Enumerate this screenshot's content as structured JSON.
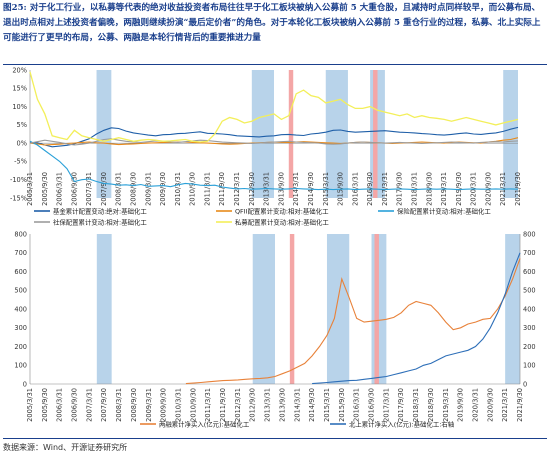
{
  "caption": {
    "figure_label": "图25:",
    "text": "对于化工行业，以私募等代表的绝对收益投资者布局往往早于化工板块被纳入公募前 5 大重仓股，且减持时点同样较早，而公募布局、退出时点相对上述投资者偏晚，两融则继续扮演“最后定价者”的角色。对于本轮化工板块被纳入公募前 5 重仓行业的过程，私募、北上实际上可能进行了更早的布局，公募、两融是本轮行情背后的重要推进力量"
  },
  "source": "数据来源：Wind、开源证券研究所",
  "colors": {
    "blue_band": "#b8d3ea",
    "red_band": "#f4a6a6",
    "fund": "#1f5fa8",
    "qfii": "#e88a1a",
    "insurance": "#2aa0d8",
    "social": "#9c9c9c",
    "private": "#f3ef5a",
    "margin": "#e8823a",
    "north": "#2e6fb8"
  },
  "chart_data": [
    {
      "type": "line",
      "quarters": [
        "2005/3/31",
        "2005/6/30",
        "2005/9/30",
        "2005/12/31",
        "2006/3/31",
        "2006/6/30",
        "2006/9/30",
        "2006/12/31",
        "2007/3/31",
        "2007/6/30",
        "2007/9/30",
        "2007/12/31",
        "2008/3/31",
        "2008/6/30",
        "2008/9/30",
        "2008/12/31",
        "2009/3/31",
        "2009/6/30",
        "2009/9/30",
        "2009/12/31",
        "2010/3/31",
        "2010/6/30",
        "2010/9/30",
        "2010/12/31",
        "2011/3/31",
        "2011/6/30",
        "2011/9/30",
        "2011/12/31",
        "2012/3/31",
        "2012/6/30",
        "2012/9/30",
        "2012/12/31",
        "2013/3/31",
        "2013/6/30",
        "2013/9/30",
        "2013/12/31",
        "2014/3/31",
        "2014/6/30",
        "2014/9/30",
        "2014/12/31",
        "2015/3/31",
        "2015/6/30",
        "2015/9/30",
        "2015/12/31",
        "2016/3/31",
        "2016/6/30",
        "2016/9/30",
        "2016/12/31",
        "2017/3/31",
        "2017/6/30",
        "2017/9/30",
        "2017/12/31",
        "2018/3/31",
        "2018/6/30",
        "2018/9/30",
        "2018/12/31",
        "2019/3/31",
        "2019/6/30",
        "2019/9/30",
        "2019/12/31",
        "2020/3/31",
        "2020/6/30",
        "2020/9/30",
        "2020/12/31",
        "2021/3/31",
        "2021/6/30",
        "2021/9/30"
      ],
      "tick_labels": [
        "2005/3/31",
        "2005/9/30",
        "2006/3/31",
        "2006/9/30",
        "2007/3/31",
        "2007/9/30",
        "2008/3/31",
        "2008/9/30",
        "2009/3/31",
        "2009/9/30",
        "2010/3/31",
        "2010/9/30",
        "2011/3/31",
        "2011/9/30",
        "2012/3/31",
        "2012/9/30",
        "2013/3/31",
        "2013/9/30",
        "2014/3/31",
        "2014/9/30",
        "2015/3/31",
        "2015/9/30",
        "2016/3/31",
        "2016/9/30",
        "2017/3/31",
        "2017/9/30",
        "2018/3/31",
        "2018/9/30",
        "2019/3/31",
        "2019/9/30",
        "2020/3/31",
        "2020/9/30",
        "2021/3/31",
        "2021/9/30"
      ],
      "y_ticks": [
        "-15%",
        "-10%",
        "-5%",
        "0%",
        "5%",
        "10%",
        "15%",
        "20%"
      ],
      "ylim": [
        -15,
        20
      ],
      "blue_bands": [
        [
          9,
          11
        ],
        [
          30,
          33
        ],
        [
          40,
          43
        ],
        [
          46,
          48
        ],
        [
          64,
          66
        ]
      ],
      "red_bands": [
        [
          35,
          35.6
        ],
        [
          46.4,
          47
        ]
      ],
      "series": [
        {
          "name": "基金累计配置变动:绝对:基础化工",
          "key": "fund",
          "values": [
            0.2,
            0.1,
            -0.5,
            -1.0,
            -0.8,
            -0.6,
            -0.2,
            0.5,
            1.2,
            2.5,
            3.5,
            4.2,
            4.0,
            3.3,
            2.8,
            2.5,
            2.2,
            2.0,
            2.3,
            2.4,
            2.6,
            2.7,
            2.9,
            3.1,
            2.7,
            2.6,
            2.5,
            2.3,
            2.0,
            1.9,
            1.8,
            1.7,
            1.9,
            2.0,
            2.3,
            2.4,
            2.2,
            2.1,
            2.5,
            2.7,
            3.0,
            3.5,
            3.6,
            3.2,
            3.0,
            3.1,
            3.2,
            3.3,
            3.4,
            3.2,
            3.0,
            2.9,
            2.8,
            2.6,
            2.5,
            2.3,
            2.2,
            2.4,
            2.6,
            2.8,
            2.5,
            2.4,
            2.6,
            2.8,
            3.2,
            3.8,
            4.3
          ]
        },
        {
          "name": "QFII配置累计变动:相对:基础化工",
          "key": "qfii",
          "values": [
            0.0,
            -0.2,
            -0.5,
            -0.4,
            -0.3,
            -0.1,
            0.0,
            0.2,
            0.3,
            0.1,
            0.0,
            -0.2,
            -0.4,
            -0.3,
            -0.2,
            -0.1,
            0.0,
            0.1,
            0.2,
            0.2,
            0.3,
            0.3,
            0.2,
            0.1,
            0.0,
            -0.1,
            -0.2,
            -0.3,
            -0.2,
            -0.1,
            0.0,
            0.1,
            0.2,
            0.3,
            0.2,
            0.2,
            0.3,
            0.4,
            0.3,
            0.2,
            0.1,
            0.0,
            -0.1,
            0.0,
            0.2,
            0.3,
            0.2,
            0.1,
            0.0,
            -0.1,
            0.0,
            0.1,
            0.2,
            0.3,
            0.2,
            0.1,
            0.0,
            0.2,
            0.3,
            0.2,
            0.1,
            0.0,
            0.3,
            0.5,
            0.8,
            1.0,
            1.5
          ]
        },
        {
          "name": "保险配置累计变动:相对:基础化工",
          "key": "insurance",
          "values": [
            0.5,
            -0.5,
            -2.0,
            -3.5,
            -5.0,
            -7.0,
            -10.5,
            -10.0,
            -9.8,
            -10.5,
            -11.0,
            -11.2,
            -11.5,
            -11.4,
            -11.6,
            -11.3,
            -11.8,
            -11.7,
            -11.6,
            -11.9,
            -11.4,
            -11.0,
            -11.2,
            -11.5,
            -11.6,
            -11.5,
            -12.0,
            -12.3,
            -12.5,
            -12.4,
            -12.6,
            -12.5,
            -12.4,
            -12.5,
            -12.6,
            -12.5,
            -12.4,
            -12.5,
            -12.6,
            -12.7,
            -12.6,
            -12.7,
            -12.6,
            -12.5,
            -12.7,
            -12.6,
            -12.5,
            -12.6,
            -12.7,
            -12.6,
            -12.5,
            -12.6,
            -12.7,
            -12.6,
            -12.5,
            -12.6,
            -12.5,
            -12.6,
            -12.7,
            -12.6,
            -12.5,
            -12.6,
            -12.6,
            -12.5,
            -12.6,
            -12.5,
            -12.6
          ]
        },
        {
          "name": "社保配置累计变动:相对:基础化工",
          "key": "social",
          "values": [
            0.0,
            0.4,
            0.8,
            0.5,
            0.2,
            -0.2,
            -0.5,
            -0.3,
            0.0,
            0.5,
            1.0,
            1.2,
            0.8,
            0.5,
            0.3,
            0.2,
            0.4,
            0.6,
            0.5,
            0.3,
            0.2,
            0.4,
            0.6,
            0.8,
            0.7,
            0.5,
            0.3,
            0.2,
            0.1,
            0.0,
            -0.1,
            0.0,
            0.2,
            0.3,
            0.4,
            0.5,
            0.3,
            0.2,
            0.1,
            0.0,
            -0.2,
            -0.3,
            -0.2,
            0.0,
            0.2,
            0.3,
            0.2,
            0.1,
            0.0,
            0.1,
            0.2,
            0.1,
            0.0,
            -0.1,
            0.0,
            0.1,
            0.2,
            0.3,
            0.2,
            0.1,
            0.0,
            0.2,
            0.3,
            0.4,
            0.3,
            0.5,
            0.6
          ]
        },
        {
          "name": "私募配置累计变动:相对:基础化工",
          "key": "private",
          "values": [
            19.5,
            12.0,
            8.0,
            2.0,
            1.5,
            1.0,
            3.5,
            2.0,
            1.5,
            1.0,
            0.5,
            1.0,
            1.5,
            1.0,
            0.5,
            0.8,
            1.0,
            0.8,
            0.5,
            0.6,
            0.8,
            1.0,
            0.5,
            0.3,
            0.5,
            2.5,
            6.0,
            7.0,
            6.5,
            5.5,
            6.0,
            7.0,
            7.5,
            8.0,
            6.5,
            7.5,
            13.5,
            14.5,
            13.0,
            12.5,
            11.0,
            11.5,
            12.0,
            10.5,
            9.5,
            9.5,
            10.0,
            9.0,
            8.5,
            8.0,
            7.5,
            8.0,
            7.0,
            7.5,
            7.0,
            6.8,
            6.5,
            6.0,
            6.5,
            7.0,
            6.5,
            6.0,
            5.5,
            5.0,
            5.5,
            6.0,
            6.5
          ]
        }
      ],
      "legend": [
        {
          "label": "基金累计配置变动:绝对:基础化工",
          "key": "fund"
        },
        {
          "label": "QFII配置累计变动:相对:基础化工",
          "key": "qfii"
        },
        {
          "label": "保险配置累计变动:相对:基础化工",
          "key": "insurance"
        },
        {
          "label": "社保配置累计变动:相对:基础化工",
          "key": "social"
        },
        {
          "label": "私募配置累计变动:相对:基础化工",
          "key": "private"
        }
      ]
    },
    {
      "type": "line",
      "quarters": [
        "2005/3/31",
        "2005/6/30",
        "2005/9/30",
        "2005/12/31",
        "2006/3/31",
        "2006/6/30",
        "2006/9/30",
        "2006/12/31",
        "2007/3/31",
        "2007/6/30",
        "2007/9/30",
        "2007/12/31",
        "2008/3/31",
        "2008/6/30",
        "2008/9/30",
        "2008/12/31",
        "2009/3/31",
        "2009/6/30",
        "2009/9/30",
        "2009/12/31",
        "2010/3/31",
        "2010/6/30",
        "2010/9/30",
        "2010/12/31",
        "2011/3/31",
        "2011/6/30",
        "2011/9/30",
        "2011/12/31",
        "2012/3/31",
        "2012/6/30",
        "2012/9/30",
        "2012/12/31",
        "2013/3/31",
        "2013/6/30",
        "2013/9/30",
        "2013/12/31",
        "2014/3/31",
        "2014/6/30",
        "2014/9/30",
        "2014/12/31",
        "2015/3/31",
        "2015/6/30",
        "2015/9/30",
        "2015/12/31",
        "2016/3/31",
        "2016/6/30",
        "2016/9/30",
        "2016/12/31",
        "2017/3/31",
        "2017/6/30",
        "2017/9/30",
        "2017/12/31",
        "2018/3/31",
        "2018/6/30",
        "2018/9/30",
        "2018/12/31",
        "2019/3/31",
        "2019/6/30",
        "2019/9/30",
        "2019/12/31",
        "2020/3/31",
        "2020/6/30",
        "2020/9/30",
        "2020/12/31",
        "2021/3/31",
        "2021/6/30",
        "2021/9/30"
      ],
      "tick_labels": [
        "2005/3/31",
        "2005/9/30",
        "2006/3/31",
        "2006/9/30",
        "2007/3/31",
        "2007/9/30",
        "2008/3/31",
        "2008/9/30",
        "2009/3/31",
        "2009/9/30",
        "2010/3/31",
        "2010/9/30",
        "2011/3/31",
        "2011/9/30",
        "2012/3/31",
        "2012/9/30",
        "2013/3/31",
        "2013/9/30",
        "2014/3/31",
        "2014/9/30",
        "2015/3/31",
        "2015/9/30",
        "2016/3/31",
        "2016/9/30",
        "2017/3/31",
        "2017/9/30",
        "2018/3/31",
        "2018/9/30",
        "2019/3/31",
        "2019/9/30",
        "2020/3/31",
        "2020/9/30",
        "2021/3/31",
        "2021/9/30"
      ],
      "y_ticks_left": [
        "0",
        "100",
        "200",
        "300",
        "400",
        "500",
        "600",
        "700",
        "800"
      ],
      "y_ticks_right": [
        "0",
        "100",
        "200",
        "300",
        "400",
        "500",
        "600",
        "700",
        "800"
      ],
      "ylim": [
        0,
        800
      ],
      "blue_bands": [
        [
          9,
          11
        ],
        [
          30,
          33
        ],
        [
          40,
          43
        ],
        [
          46,
          48
        ],
        [
          64,
          66
        ]
      ],
      "red_bands": [
        [
          35,
          35.6
        ],
        [
          46.4,
          47
        ]
      ],
      "series": [
        {
          "name": "两融累计净买入(亿元):基础化工",
          "key": "margin",
          "axis": "left",
          "values": [
            null,
            null,
            null,
            null,
            null,
            null,
            null,
            null,
            null,
            null,
            null,
            null,
            null,
            null,
            null,
            null,
            null,
            null,
            null,
            null,
            null,
            2,
            5,
            8,
            12,
            15,
            18,
            20,
            22,
            25,
            28,
            30,
            33,
            40,
            55,
            70,
            90,
            110,
            150,
            200,
            260,
            350,
            560,
            460,
            350,
            330,
            335,
            340,
            345,
            355,
            380,
            420,
            440,
            430,
            420,
            380,
            330,
            290,
            300,
            320,
            330,
            345,
            350,
            400,
            470,
            560,
            670
          ]
        },
        {
          "name": "北上累计净买入(亿元):基础化工:右轴",
          "key": "north",
          "axis": "right",
          "values": [
            null,
            null,
            null,
            null,
            null,
            null,
            null,
            null,
            null,
            null,
            null,
            null,
            null,
            null,
            null,
            null,
            null,
            null,
            null,
            null,
            null,
            null,
            null,
            null,
            null,
            null,
            null,
            null,
            null,
            null,
            null,
            null,
            null,
            null,
            null,
            null,
            null,
            null,
            2,
            5,
            8,
            12,
            15,
            18,
            20,
            25,
            30,
            35,
            40,
            50,
            60,
            70,
            80,
            100,
            110,
            130,
            150,
            160,
            170,
            180,
            200,
            240,
            300,
            380,
            480,
            600,
            700
          ]
        }
      ],
      "legend": [
        {
          "label": "两融累计净买入(亿元):基础化工",
          "key": "margin"
        },
        {
          "label": "北上累计净买入(亿元):基础化工:右轴",
          "key": "north"
        }
      ]
    }
  ]
}
